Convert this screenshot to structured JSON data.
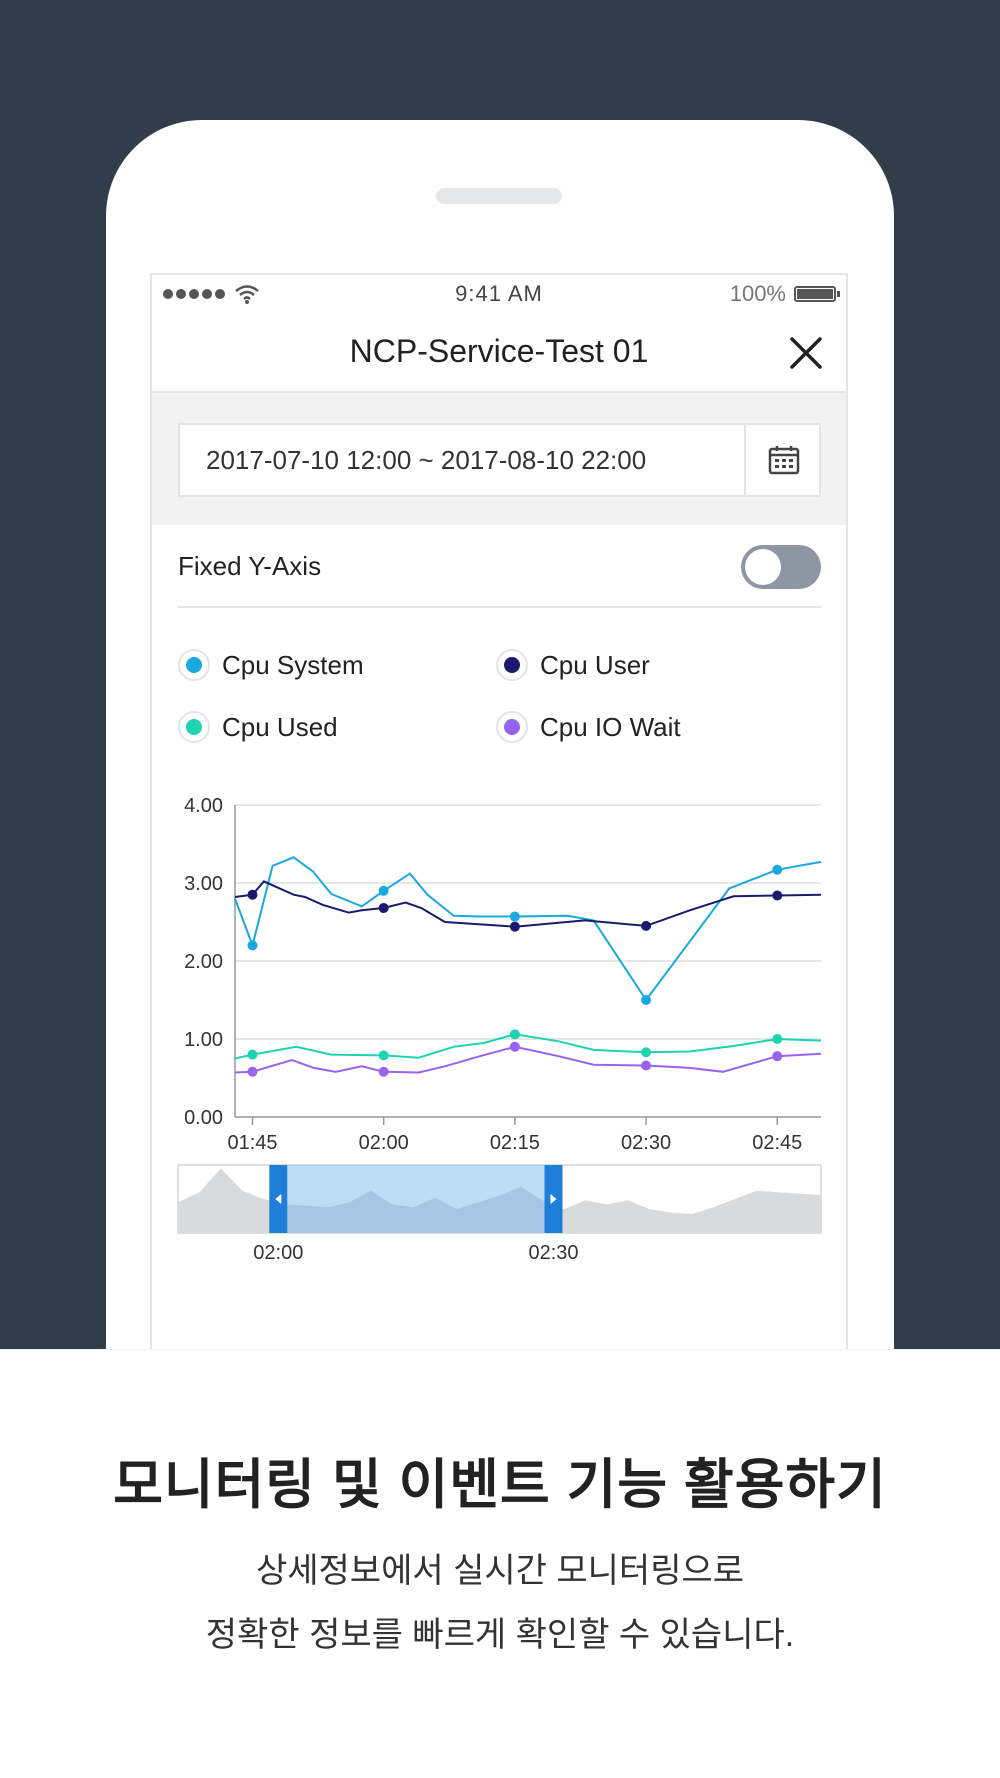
{
  "statusbar": {
    "time": "9:41 AM",
    "battery": "100%"
  },
  "nav": {
    "title": "NCP-Service-Test 01"
  },
  "date_range": {
    "value": "2017-07-10 12:00 ~ 2017-08-10 22:00"
  },
  "fixed_y_axis": {
    "label": "Fixed Y-Axis",
    "enabled": false
  },
  "legend": [
    {
      "label": "Cpu System",
      "color": "#1ba8e0"
    },
    {
      "label": "Cpu User",
      "color": "#1b1a6e"
    },
    {
      "label": "Cpu Used",
      "color": "#1ed3b0"
    },
    {
      "label": "Cpu IO Wait",
      "color": "#9a62f0"
    }
  ],
  "chart_data": {
    "type": "line",
    "ylim": [
      0,
      4
    ],
    "y_ticks": [
      "0.00",
      "1.00",
      "2.00",
      "3.00",
      "4.00"
    ],
    "x_ticks": [
      "01:45",
      "02:00",
      "02:15",
      "02:30",
      "02:45"
    ],
    "x_tick_values": [
      105,
      120,
      135,
      150,
      165
    ],
    "xlim": [
      103,
      170
    ],
    "series": [
      {
        "name": "Cpu System",
        "color": "#1ba8e0",
        "x": [
          103,
          105,
          107.3,
          109.7,
          111.9,
          114,
          117.5,
          120,
          123,
          125,
          128,
          131,
          135,
          141,
          144,
          150,
          159.5,
          165,
          170
        ],
        "y": [
          2.8,
          2.2,
          3.22,
          3.33,
          3.15,
          2.86,
          2.7,
          2.9,
          3.12,
          2.85,
          2.58,
          2.57,
          2.57,
          2.58,
          2.52,
          1.5,
          2.93,
          3.17,
          3.27
        ],
        "markers": [
          1,
          7,
          12,
          15,
          17
        ]
      },
      {
        "name": "Cpu User",
        "color": "#1b1a6e",
        "x": [
          103,
          105,
          106.3,
          109.7,
          111,
          113,
          116,
          117.5,
          120,
          122.5,
          124.3,
          127,
          135,
          143,
          150,
          155,
          160,
          165,
          170
        ],
        "y": [
          2.82,
          2.85,
          3.02,
          2.85,
          2.82,
          2.72,
          2.62,
          2.65,
          2.68,
          2.75,
          2.68,
          2.5,
          2.44,
          2.52,
          2.45,
          2.65,
          2.83,
          2.84,
          2.85
        ],
        "markers": [
          1,
          8,
          12,
          14,
          17
        ]
      },
      {
        "name": "Cpu Used",
        "color": "#1ed3b0",
        "x": [
          103,
          105,
          110,
          114,
          120,
          124,
          128,
          131.5,
          135,
          140,
          144,
          150,
          155,
          160,
          165,
          170
        ],
        "y": [
          0.75,
          0.8,
          0.9,
          0.8,
          0.79,
          0.76,
          0.9,
          0.95,
          1.06,
          0.97,
          0.86,
          0.83,
          0.84,
          0.91,
          1.0,
          0.98
        ],
        "markers": [
          1,
          4,
          8,
          11,
          14
        ]
      },
      {
        "name": "Cpu IO Wait",
        "color": "#9a62f0",
        "x": [
          103,
          105,
          109.5,
          112,
          114.5,
          117.5,
          120,
          124,
          127,
          131,
          135,
          140,
          144,
          150,
          155,
          158.8,
          165,
          170
        ],
        "y": [
          0.57,
          0.58,
          0.73,
          0.63,
          0.58,
          0.65,
          0.58,
          0.57,
          0.65,
          0.78,
          0.9,
          0.78,
          0.67,
          0.66,
          0.63,
          0.58,
          0.78,
          0.81
        ],
        "markers": [
          1,
          6,
          10,
          13,
          16
        ]
      }
    ]
  },
  "range_selector": {
    "start_label": "02:00",
    "end_label": "02:30",
    "start_fraction": 0.17,
    "end_fraction": 0.57,
    "overview_values": [
      0.45,
      0.6,
      0.95,
      0.62,
      0.5,
      0.42,
      0.4,
      0.38,
      0.45,
      0.62,
      0.42,
      0.38,
      0.52,
      0.35,
      0.45,
      0.55,
      0.68,
      0.48,
      0.35,
      0.48,
      0.42,
      0.48,
      0.35,
      0.3,
      0.28,
      0.38,
      0.5,
      0.62,
      0.6,
      0.58,
      0.56
    ]
  },
  "promo": {
    "headline": "모니터링 및 이벤트 기능 활용하기",
    "sub1": "상세정보에서 실시간 모니터링으로",
    "sub2": "정확한 정보를 빠르게 확인할 수 있습니다."
  }
}
